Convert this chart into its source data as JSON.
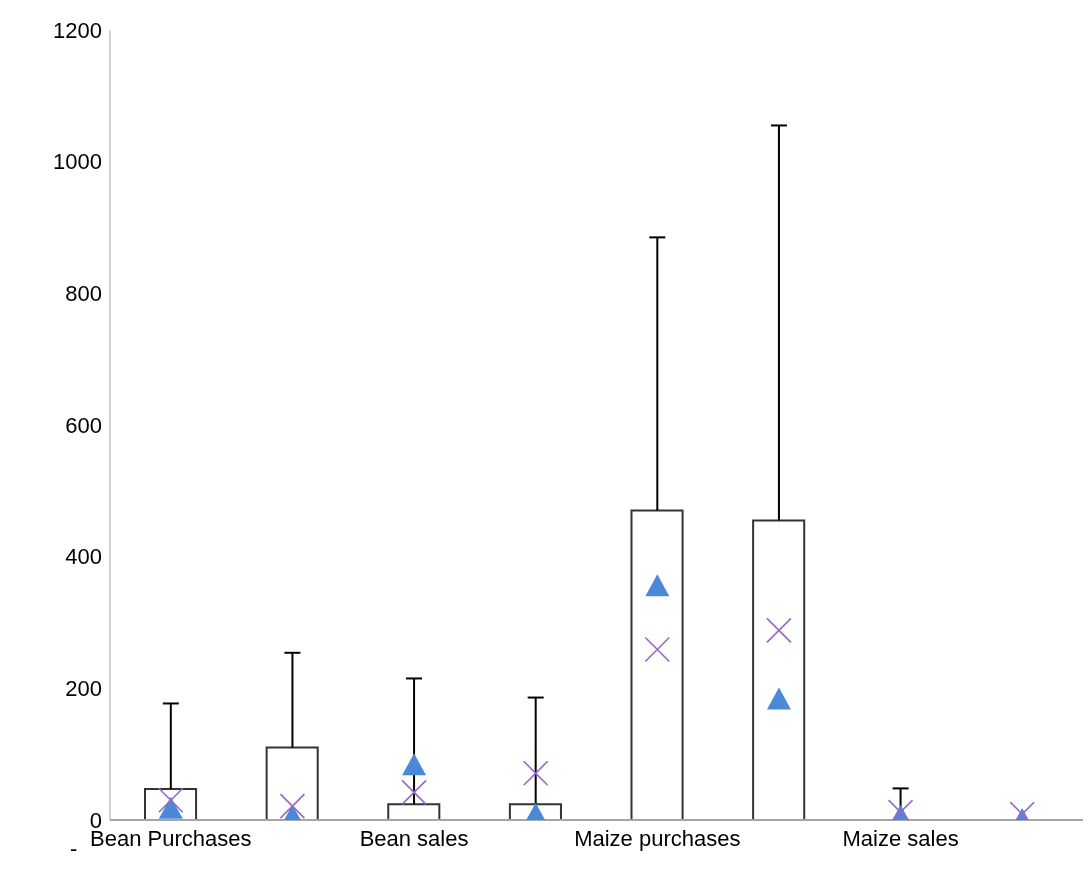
{
  "chart_data": {
    "type": "bar",
    "categories": [
      "Bean Purchases",
      null,
      "Bean sales",
      null,
      "Maize purchases",
      null,
      "Maize sales",
      null
    ],
    "series": [
      {
        "color": "#ffffff",
        "values": [
          47,
          110,
          24,
          24,
          470,
          455,
          0,
          0
        ],
        "errors": [
          [
            47,
            177
          ],
          [
            110,
            254
          ],
          [
            24,
            215
          ],
          [
            24,
            186
          ],
          [
            470,
            885
          ],
          [
            455,
            1055
          ],
          [
            0,
            48
          ],
          null
        ]
      },
      {
        "type": "scatter",
        "marker": "triangle",
        "color": "#4a89d8",
        "values": [
          17,
          5,
          83,
          8,
          355,
          183,
          5,
          0
        ]
      },
      {
        "type": "scatter",
        "marker": "cross",
        "color": "#9966cc",
        "values": [
          30,
          21,
          42,
          71,
          259,
          288,
          12,
          9
        ]
      }
    ],
    "ylim": [
      0,
      1200
    ],
    "yticks": [
      0,
      200,
      400,
      600,
      800,
      1000,
      1200
    ],
    "annotations": [
      "-"
    ],
    "grid": false,
    "legend": false
  }
}
